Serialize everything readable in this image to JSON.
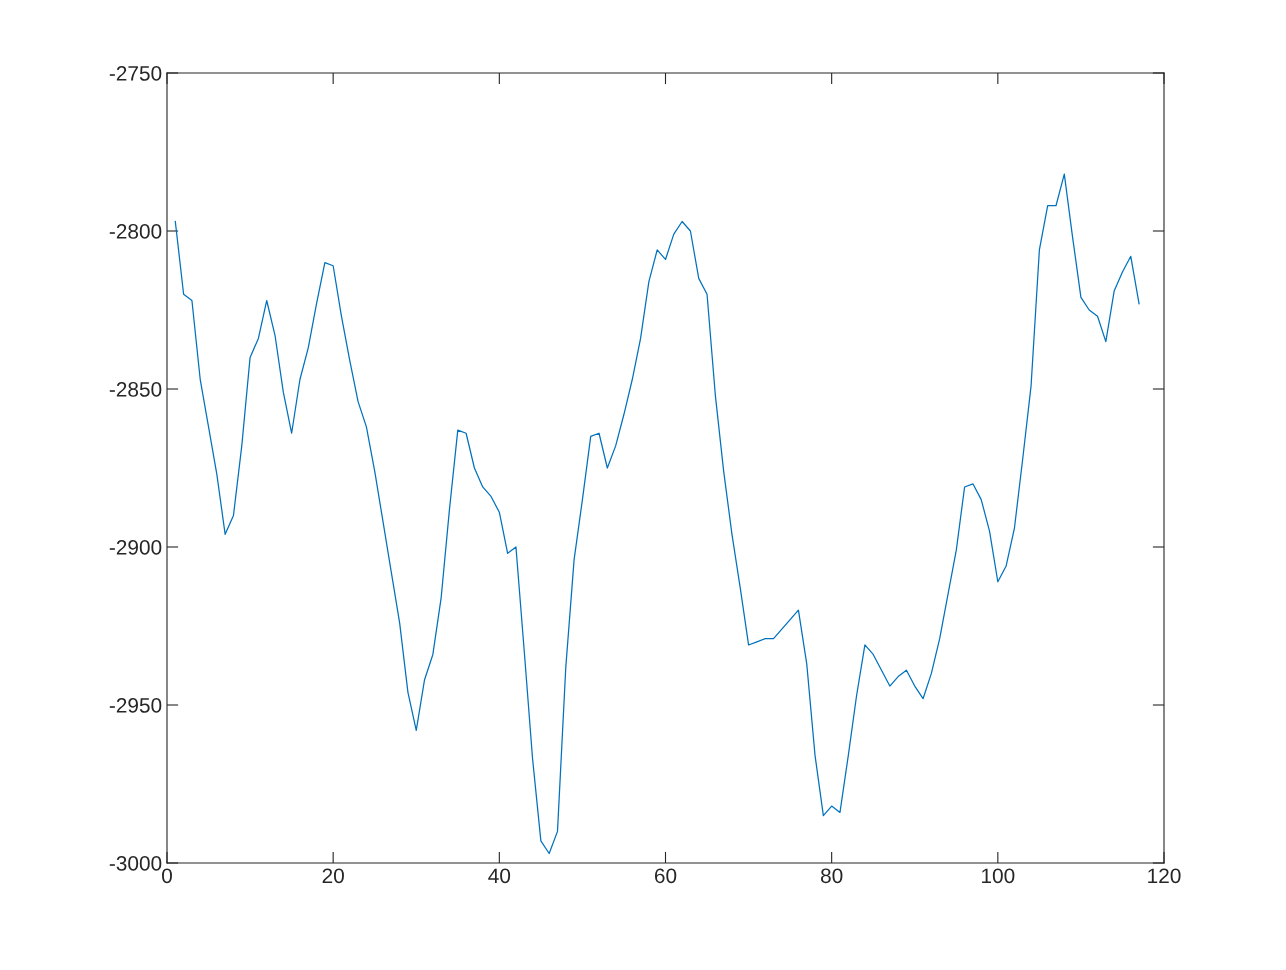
{
  "chart_data": {
    "type": "line",
    "x": [
      1,
      2,
      3,
      4,
      5,
      6,
      7,
      8,
      9,
      10,
      11,
      12,
      13,
      14,
      15,
      16,
      17,
      18,
      19,
      20,
      21,
      22,
      23,
      24,
      25,
      26,
      27,
      28,
      29,
      30,
      31,
      32,
      33,
      34,
      35,
      36,
      37,
      38,
      39,
      40,
      41,
      42,
      43,
      44,
      45,
      46,
      47,
      48,
      49,
      50,
      51,
      52,
      53,
      54,
      55,
      56,
      57,
      58,
      59,
      60,
      61,
      62,
      63,
      64,
      65,
      66,
      67,
      68,
      69,
      70,
      71,
      72,
      73,
      74,
      75,
      76,
      77,
      78,
      79,
      80,
      81,
      82,
      83,
      84,
      85,
      86,
      87,
      88,
      89,
      90,
      91,
      92,
      93,
      94,
      95,
      96,
      97,
      98,
      99,
      100,
      101,
      102,
      103,
      104,
      105,
      106,
      107,
      108,
      109,
      110,
      111,
      112,
      113,
      114,
      115,
      116,
      117
    ],
    "series": [
      {
        "color": "#0072bd",
        "values": [
          -2797,
          -2820,
          -2822,
          -2847,
          -2862,
          -2877,
          -2896,
          -2890,
          -2868,
          -2840,
          -2834,
          -2822,
          -2833,
          -2851,
          -2864,
          -2847,
          -2837,
          -2823,
          -2810,
          -2811,
          -2827,
          -2841,
          -2854,
          -2862,
          -2876,
          -2892,
          -2908,
          -2924,
          -2946,
          -2958,
          -2942,
          -2934,
          -2916,
          -2888,
          -2863,
          -2864,
          -2875,
          -2881,
          -2884,
          -2889,
          -2902,
          -2900,
          -2933,
          -2967,
          -2993,
          -2997,
          -2990,
          -2938,
          -2904,
          -2885,
          -2865,
          -2864,
          -2875,
          -2868,
          -2858,
          -2847,
          -2834,
          -2816,
          -2806,
          -2809,
          -2801,
          -2797,
          -2800,
          -2815,
          -2820,
          -2852,
          -2876,
          -2896,
          -2913,
          -2931,
          -2930,
          -2929,
          -2929,
          -2926,
          -2923,
          -2920,
          -2937,
          -2966,
          -2985,
          -2982,
          -2984,
          -2966,
          -2947,
          -2931,
          -2934,
          -2939,
          -2944,
          -2941,
          -2939,
          -2944,
          -2948,
          -2940,
          -2929,
          -2915,
          -2901,
          -2881,
          -2880,
          -2885,
          -2895,
          -2911,
          -2906,
          -2894,
          -2872,
          -2849,
          -2806,
          -2792,
          -2792,
          -2782,
          -2802,
          -2821,
          -2825,
          -2827,
          -2835,
          -2819,
          -2813,
          -2808,
          -2823
        ]
      }
    ],
    "xlim": [
      0,
      120
    ],
    "xticks": [
      0,
      20,
      40,
      60,
      80,
      100,
      120
    ],
    "ylim": [
      -3000,
      -2750
    ],
    "yticks": [
      {
        "value": -3000,
        "label": "-3000"
      },
      {
        "value": -2950,
        "label": "-2950"
      },
      {
        "value": -2900,
        "label": "-2900"
      },
      {
        "value": -2850,
        "label": "-2850"
      },
      {
        "value": -2800,
        "label": "-2800"
      },
      {
        "value": -2750,
        "label": "-2750"
      }
    ],
    "grid": false,
    "marker": "none",
    "line_style": "solid"
  }
}
